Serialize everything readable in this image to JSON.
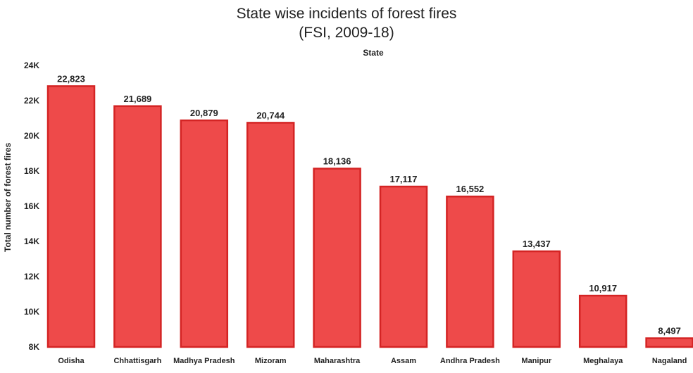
{
  "chart_data": {
    "type": "bar",
    "title": "State wise incidents of forest fires",
    "subtitle": "(FSI, 2009-18)",
    "xlabel": "State",
    "ylabel": "Total number of forest fires",
    "categories": [
      "Odisha",
      "Chhattisgarh",
      "Madhya Pradesh",
      "Mizoram",
      "Maharashtra",
      "Assam",
      "Andhra Pradesh",
      "Manipur",
      "Meghalaya",
      "Nagaland"
    ],
    "values": [
      22823,
      21689,
      20879,
      20744,
      18136,
      17117,
      16552,
      13437,
      10917,
      8497
    ],
    "value_labels": [
      "22,823",
      "21,689",
      "20,879",
      "20,744",
      "18,136",
      "17,117",
      "16,552",
      "13,437",
      "10,917",
      "8,497"
    ],
    "ylim": [
      8000,
      24000
    ],
    "yticks": [
      8000,
      10000,
      12000,
      14000,
      16000,
      18000,
      20000,
      22000,
      24000
    ],
    "ytick_labels": [
      "8K",
      "10K",
      "12K",
      "14K",
      "16K",
      "18K",
      "20K",
      "22K",
      "24K"
    ],
    "grid": false,
    "bar_color": "#ee4a4a",
    "bar_edge_color": "#d42424"
  }
}
